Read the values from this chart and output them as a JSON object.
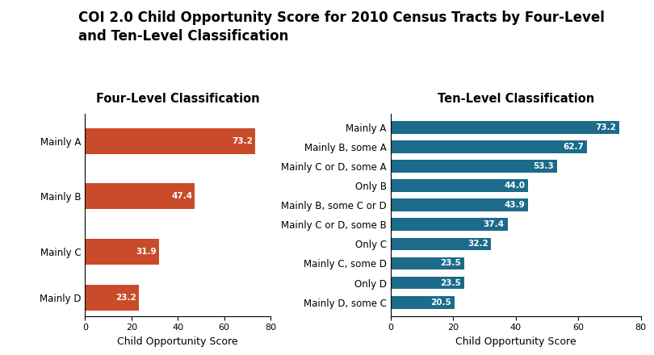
{
  "title_line1": "COI 2.0 Child Opportunity Score for 2010 Census Tracts by Four-Level",
  "title_line2": "and Ten-Level Classification",
  "title_fontsize": 12,
  "title_fontweight": "bold",
  "left_subtitle": "Four-Level Classification",
  "right_subtitle": "Ten-Level Classification",
  "subtitle_fontsize": 10.5,
  "subtitle_fontweight": "bold",
  "xlabel": "Child Opportunity Score",
  "xlabel_fontsize": 9,
  "four_level_categories": [
    "Mainly A",
    "Mainly B",
    "Mainly C",
    "Mainly D"
  ],
  "four_level_values": [
    73.2,
    47.4,
    31.9,
    23.2
  ],
  "four_level_color": "#C94B2A",
  "ten_level_categories": [
    "Mainly A",
    "Mainly B, some A",
    "Mainly C or D, some A",
    "Only B",
    "Mainly B, some C or D",
    "Mainly C or D, some B",
    "Only C",
    "Mainly C, some D",
    "Only D",
    "Mainly D, some C"
  ],
  "ten_level_values": [
    73.2,
    62.7,
    53.3,
    44.0,
    43.9,
    37.4,
    32.2,
    23.5,
    23.5,
    20.5
  ],
  "ten_level_color": "#1C6B8A",
  "xlim": [
    0,
    80
  ],
  "xticks": [
    0,
    20,
    40,
    60,
    80
  ],
  "bar_label_color": "white",
  "bar_label_fontsize": 7.5,
  "tick_fontsize": 8,
  "cat_fontsize": 8.5,
  "background_color": "#ffffff"
}
